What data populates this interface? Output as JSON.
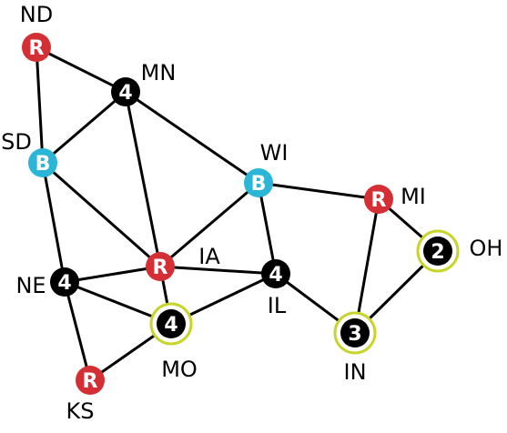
{
  "colors": {
    "red": "#d32f34",
    "blue": "#2bb5d6",
    "black": "#000000",
    "highlight_ring": "#c9d42b",
    "edge": "#000000"
  },
  "nodes": [
    {
      "id": "ND",
      "label": "ND",
      "value": "R",
      "color": "red",
      "highlight": false
    },
    {
      "id": "MN",
      "label": "MN",
      "value": "4",
      "color": "black",
      "highlight": false
    },
    {
      "id": "SD",
      "label": "SD",
      "value": "B",
      "color": "blue",
      "highlight": false
    },
    {
      "id": "WI",
      "label": "WI",
      "value": "B",
      "color": "blue",
      "highlight": false
    },
    {
      "id": "MI",
      "label": "MI",
      "value": "R",
      "color": "red",
      "highlight": false
    },
    {
      "id": "IA",
      "label": "IA",
      "value": "R",
      "color": "red",
      "highlight": false
    },
    {
      "id": "NE",
      "label": "NE",
      "value": "4",
      "color": "black",
      "highlight": false
    },
    {
      "id": "IL",
      "label": "IL",
      "value": "4",
      "color": "black",
      "highlight": false
    },
    {
      "id": "OH",
      "label": "OH",
      "value": "2",
      "color": "black",
      "highlight": true
    },
    {
      "id": "MO",
      "label": "MO",
      "value": "4",
      "color": "black",
      "highlight": true
    },
    {
      "id": "IN",
      "label": "IN",
      "value": "3",
      "color": "black",
      "highlight": true
    },
    {
      "id": "KS",
      "label": "KS",
      "value": "R",
      "color": "red",
      "highlight": false
    }
  ],
  "edges": [
    [
      "ND",
      "MN"
    ],
    [
      "ND",
      "SD"
    ],
    [
      "MN",
      "SD"
    ],
    [
      "MN",
      "IA"
    ],
    [
      "MN",
      "WI"
    ],
    [
      "SD",
      "IA"
    ],
    [
      "SD",
      "NE"
    ],
    [
      "WI",
      "IA"
    ],
    [
      "WI",
      "IL"
    ],
    [
      "WI",
      "MI"
    ],
    [
      "IA",
      "NE"
    ],
    [
      "IA",
      "MO"
    ],
    [
      "IA",
      "IL"
    ],
    [
      "NE",
      "MO"
    ],
    [
      "NE",
      "KS"
    ],
    [
      "MO",
      "KS"
    ],
    [
      "MO",
      "IL"
    ],
    [
      "IL",
      "IN"
    ],
    [
      "MI",
      "IN"
    ],
    [
      "MI",
      "OH"
    ],
    [
      "IN",
      "OH"
    ]
  ]
}
